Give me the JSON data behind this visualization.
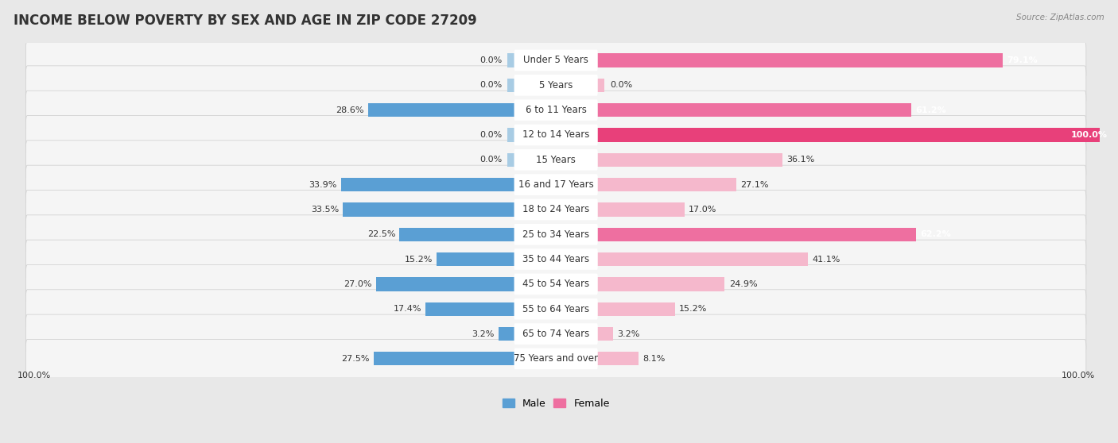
{
  "title": "INCOME BELOW POVERTY BY SEX AND AGE IN ZIP CODE 27209",
  "source": "Source: ZipAtlas.com",
  "categories": [
    "Under 5 Years",
    "5 Years",
    "6 to 11 Years",
    "12 to 14 Years",
    "15 Years",
    "16 and 17 Years",
    "18 to 24 Years",
    "25 to 34 Years",
    "35 to 44 Years",
    "45 to 54 Years",
    "55 to 64 Years",
    "65 to 74 Years",
    "75 Years and over"
  ],
  "male": [
    0.0,
    0.0,
    28.6,
    0.0,
    0.0,
    33.9,
    33.5,
    22.5,
    15.2,
    27.0,
    17.4,
    3.2,
    27.5
  ],
  "female": [
    79.1,
    0.0,
    61.2,
    100.0,
    36.1,
    27.1,
    17.0,
    62.2,
    41.1,
    24.9,
    15.2,
    3.2,
    8.1
  ],
  "male_color_light": "#a8cce4",
  "male_color_dark": "#5a9fd4",
  "female_color_light": "#f5b8cc",
  "female_color_dark": "#ee6fa0",
  "female_color_intense": "#e8407a",
  "background_color": "#e8e8e8",
  "row_bg_color": "#f5f5f5",
  "xlim": 100,
  "legend_male": "Male",
  "legend_female": "Female",
  "title_fontsize": 12,
  "label_fontsize": 8.5,
  "value_fontsize": 8.0,
  "axis_label_fontsize": 8.0
}
